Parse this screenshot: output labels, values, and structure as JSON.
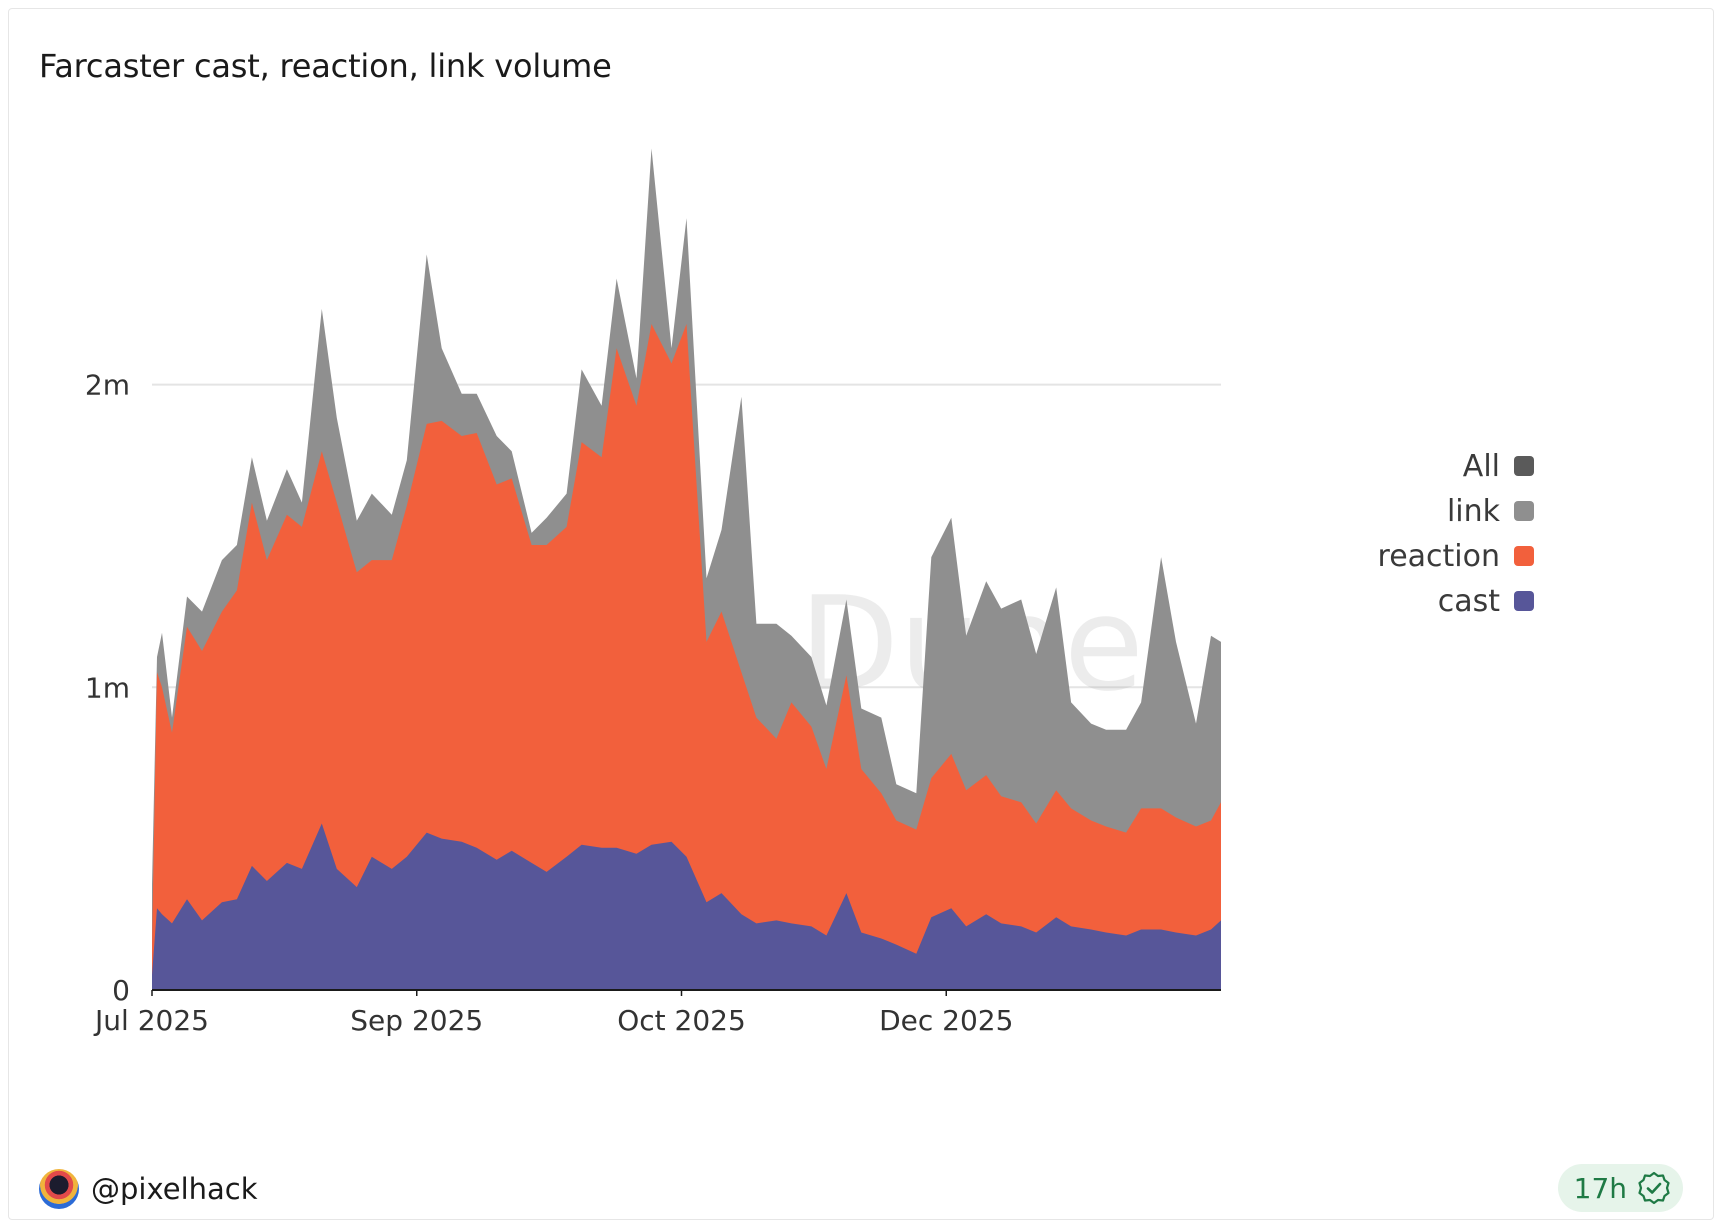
{
  "chart_data": {
    "type": "area",
    "stacked": true,
    "title": "Farcaster cast, reaction, link volume",
    "xlabel": "",
    "ylabel": "",
    "x_range": [
      "2025-07-01",
      "2026-01-31"
    ],
    "ylim": [
      0,
      2950000
    ],
    "y_ticks": [
      {
        "value": 0,
        "label": "0"
      },
      {
        "value": 1000000,
        "label": "1m"
      },
      {
        "value": 2000000,
        "label": "2m"
      }
    ],
    "x_ticks": [
      {
        "date": "2025-07-01",
        "label": "Jul 2025"
      },
      {
        "date": "2025-08-23",
        "label": "Sep 2025"
      },
      {
        "date": "2025-10-15",
        "label": "Oct 2025"
      },
      {
        "date": "2025-12-07",
        "label": "Dec 2025"
      }
    ],
    "grid": true,
    "legend_position": "right",
    "watermark": "Dune",
    "anchors": {
      "x": [
        "2025-07-01",
        "2025-07-02",
        "2025-07-03",
        "2025-07-05",
        "2025-07-08",
        "2025-07-11",
        "2025-07-15",
        "2025-07-18",
        "2025-07-21",
        "2025-07-24",
        "2025-07-28",
        "2025-07-31",
        "2025-08-04",
        "2025-08-07",
        "2025-08-11",
        "2025-08-14",
        "2025-08-18",
        "2025-08-21",
        "2025-08-25",
        "2025-08-28",
        "2025-09-01",
        "2025-09-04",
        "2025-09-08",
        "2025-09-11",
        "2025-09-15",
        "2025-09-18",
        "2025-09-22",
        "2025-09-25",
        "2025-09-29",
        "2025-10-02",
        "2025-10-06",
        "2025-10-09",
        "2025-10-13",
        "2025-10-16",
        "2025-10-20",
        "2025-10-23",
        "2025-10-27",
        "2025-10-30",
        "2025-11-03",
        "2025-11-06",
        "2025-11-10",
        "2025-11-13",
        "2025-11-17",
        "2025-11-20",
        "2025-11-24",
        "2025-11-27",
        "2025-12-01",
        "2025-12-04",
        "2025-12-08",
        "2025-12-11",
        "2025-12-15",
        "2025-12-18",
        "2025-12-22",
        "2025-12-25",
        "2025-12-29",
        "2026-01-01",
        "2026-01-05",
        "2026-01-08",
        "2026-01-12",
        "2026-01-15",
        "2026-01-19",
        "2026-01-22",
        "2026-01-26",
        "2026-01-29",
        "2026-01-31"
      ],
      "total": [
        350000,
        1100000,
        1180000,
        900000,
        1300000,
        1250000,
        1420000,
        1470000,
        1760000,
        1550000,
        1720000,
        1610000,
        2250000,
        1890000,
        1550000,
        1640000,
        1570000,
        1750000,
        2430000,
        2120000,
        1970000,
        1970000,
        1830000,
        1780000,
        1510000,
        1560000,
        1640000,
        2050000,
        1930000,
        2350000,
        2020000,
        2780000,
        2120000,
        2550000,
        1360000,
        1520000,
        1960000,
        1210000,
        1210000,
        1170000,
        1100000,
        940000,
        1290000,
        930000,
        900000,
        680000,
        650000,
        1430000,
        1560000,
        1170000,
        1350000,
        1260000,
        1290000,
        1110000,
        1330000,
        950000,
        880000,
        860000,
        860000,
        950000,
        1430000,
        1150000,
        880000,
        1170000,
        1150000
      ],
      "reaction_cum": [
        150000,
        1050000,
        1000000,
        850000,
        1200000,
        1120000,
        1250000,
        1320000,
        1610000,
        1420000,
        1570000,
        1530000,
        1780000,
        1610000,
        1380000,
        1420000,
        1420000,
        1600000,
        1870000,
        1880000,
        1830000,
        1840000,
        1670000,
        1690000,
        1470000,
        1470000,
        1530000,
        1810000,
        1760000,
        2120000,
        1930000,
        2200000,
        2070000,
        2200000,
        1150000,
        1250000,
        1050000,
        900000,
        830000,
        950000,
        870000,
        730000,
        1040000,
        730000,
        650000,
        560000,
        530000,
        700000,
        780000,
        660000,
        710000,
        640000,
        620000,
        550000,
        660000,
        600000,
        560000,
        540000,
        520000,
        600000,
        600000,
        570000,
        540000,
        560000,
        620000
      ],
      "cast": [
        50000,
        270000,
        250000,
        220000,
        300000,
        230000,
        290000,
        300000,
        410000,
        360000,
        420000,
        400000,
        550000,
        400000,
        340000,
        440000,
        400000,
        440000,
        520000,
        500000,
        490000,
        470000,
        430000,
        460000,
        420000,
        390000,
        440000,
        480000,
        470000,
        470000,
        450000,
        480000,
        490000,
        440000,
        290000,
        320000,
        250000,
        220000,
        230000,
        220000,
        210000,
        180000,
        320000,
        190000,
        170000,
        150000,
        120000,
        240000,
        270000,
        210000,
        250000,
        220000,
        210000,
        190000,
        240000,
        210000,
        200000,
        190000,
        180000,
        200000,
        200000,
        190000,
        180000,
        200000,
        230000
      ]
    },
    "series": [
      {
        "name": "link",
        "color": "#8f8f8f",
        "role": "total"
      },
      {
        "name": "reaction",
        "color": "#f2603c",
        "role": "reaction_cum"
      },
      {
        "name": "cast",
        "color": "#575699",
        "role": "cast"
      }
    ],
    "legend": [
      {
        "name": "All",
        "color": "#5a5a5a"
      },
      {
        "name": "link",
        "color": "#8f8f8f"
      },
      {
        "name": "reaction",
        "color": "#f2603c"
      },
      {
        "name": "cast",
        "color": "#575699"
      }
    ]
  },
  "footer": {
    "author": "@pixelhack",
    "refresh": "17h",
    "badge_color": "#e6f4ea",
    "check_color": "#1f7a45"
  },
  "icons": {
    "avatar": "avatar-image",
    "verified": "check-badge-icon"
  }
}
